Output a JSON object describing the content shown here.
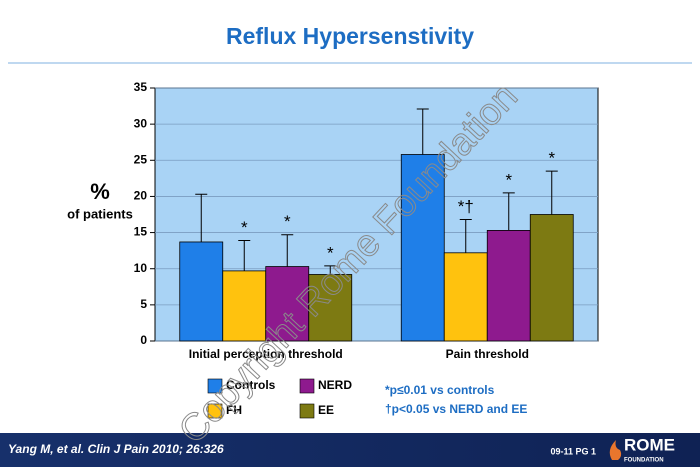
{
  "title": "Reflux Hypersenstivity",
  "chart_data": {
    "type": "bar",
    "ylabel": "%",
    "ylabel_sub": "of patients",
    "categories": [
      "Initial perception threshold",
      "Pain threshold"
    ],
    "series": [
      {
        "name": "Controls",
        "color": "#1f7fe8",
        "values": [
          13.7,
          25.8
        ],
        "errors": [
          6.6,
          6.3
        ],
        "notes": [
          null,
          null
        ]
      },
      {
        "name": "FH",
        "color": "#ffc20e",
        "values": [
          9.7,
          12.2
        ],
        "errors": [
          4.2,
          4.6
        ],
        "notes": [
          "*",
          "*†"
        ]
      },
      {
        "name": "NERD",
        "color": "#8e1a8e",
        "values": [
          10.3,
          15.3
        ],
        "errors": [
          4.4,
          5.2
        ],
        "notes": [
          "*",
          "*"
        ]
      },
      {
        "name": "EE",
        "color": "#7d7a12",
        "values": [
          9.2,
          17.5
        ],
        "errors": [
          1.2,
          6.0
        ],
        "notes": [
          "*",
          "*"
        ]
      }
    ],
    "ylim": [
      0,
      35
    ],
    "yticks": [
      0,
      5,
      10,
      15,
      20,
      25,
      30,
      35
    ],
    "grid": true,
    "footnotes": [
      "*p≤0.01 vs controls",
      "†p<0.05 vs NERD and EE"
    ]
  },
  "footer": {
    "citation": "Yang M, et al. Clin J Pain 2010; 26:326",
    "page": "09-11  PG 1",
    "logo": "ROME",
    "logo_sub": "FOUNDATION"
  },
  "watermark": "Copyright Rome Foundation"
}
